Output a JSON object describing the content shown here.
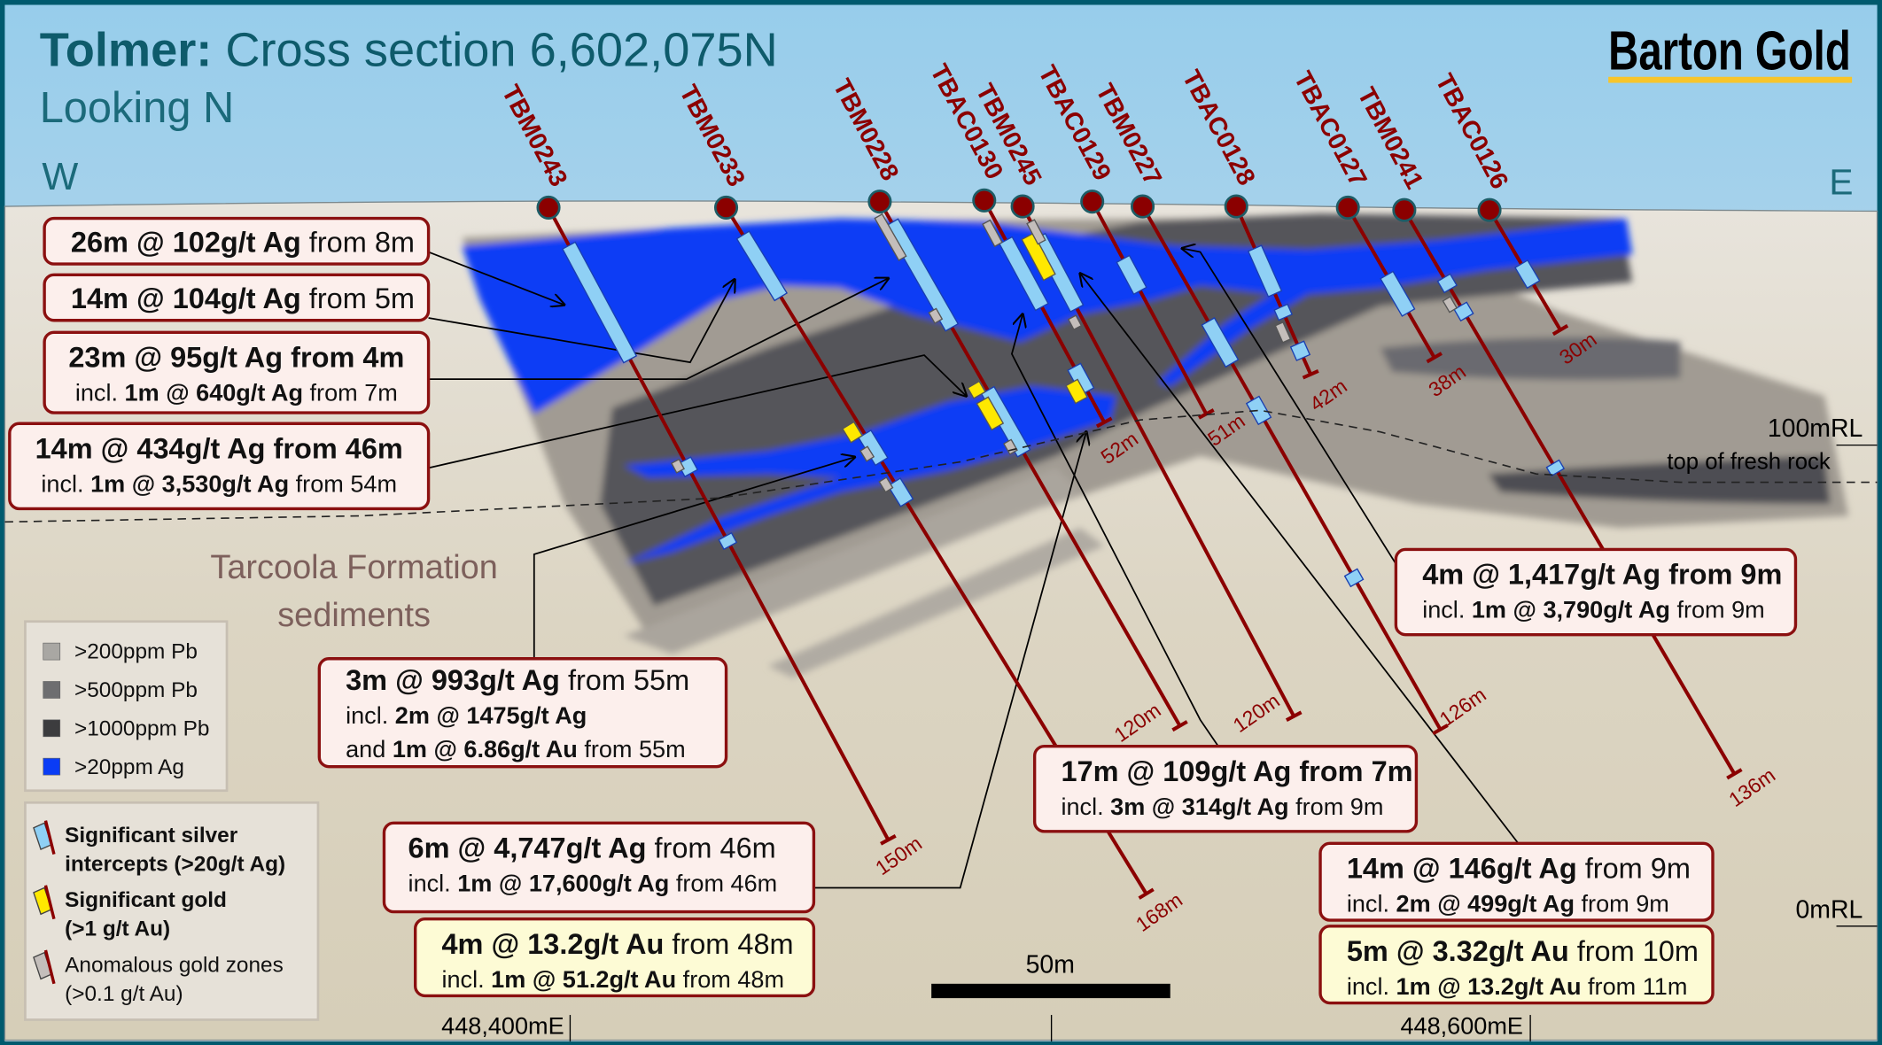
{
  "title": {
    "bold": "Tolmer:",
    "rest": " Cross section 6,602,075N",
    "subtitle": "Looking N"
  },
  "logo": "Barton Gold",
  "compass": {
    "west": "W",
    "east": "E"
  },
  "holes": [
    {
      "name": "TBM0243",
      "depth": "150m"
    },
    {
      "name": "TBM0233",
      "depth": "168m"
    },
    {
      "name": "TBM0228",
      "depth": "120m"
    },
    {
      "name": "TBAC0130",
      "depth": "52m"
    },
    {
      "name": "TBM0245",
      "depth": "120m"
    },
    {
      "name": "TBAC0129",
      "depth": "51m"
    },
    {
      "name": "TBM0227",
      "depth": "126m"
    },
    {
      "name": "TBAC0128",
      "depth": "42m"
    },
    {
      "name": "TBAC0127",
      "depth": "38m"
    },
    {
      "name": "TBM0241",
      "depth": "136m"
    },
    {
      "name": "TBAC0126",
      "depth": "30m"
    }
  ],
  "rl_labels": {
    "r100": "100mRL",
    "fresh_rock": "top of fresh rock",
    "r0": "0mRL"
  },
  "formation": [
    "Tarcoola Formation",
    "sediments"
  ],
  "legend_geochem": [
    {
      "label": ">200ppm Pb",
      "color": "#a9a7a3"
    },
    {
      "label": ">500ppm Pb",
      "color": "#6e6e70"
    },
    {
      "label": ">1000ppm Pb",
      "color": "#3c3c3e"
    },
    {
      "label": ">20ppm Ag",
      "color": "#0a3cf5"
    }
  ],
  "legend_intercepts": [
    {
      "lines": [
        "Significant silver",
        "intercepts (>20g/t Ag)"
      ],
      "color": "#8fd0f5",
      "bold": true
    },
    {
      "lines": [
        "Significant gold",
        "(>1 g/t Au)"
      ],
      "color": "#ffe800",
      "bold": true
    },
    {
      "lines": [
        "Anomalous gold zones",
        "(>0.1 g/t Au)"
      ],
      "color": "#c4bebb",
      "bold": false
    }
  ],
  "scale_bar": "50m",
  "eastings": [
    "448,400mE",
    "448,600mE"
  ],
  "callouts": [
    {
      "type": "ag",
      "lines": [
        [
          {
            "t": "26m @ 102g/t Ag",
            "b": true
          },
          {
            "t": " from 8m"
          }
        ]
      ]
    },
    {
      "type": "ag",
      "lines": [
        [
          {
            "t": "14m @ 104g/t Ag",
            "b": true
          },
          {
            "t": " from 5m"
          }
        ]
      ]
    },
    {
      "type": "ag",
      "lines": [
        [
          {
            "t": "23m @ 95g/t Ag from 4m",
            "b": true
          }
        ],
        [
          {
            "t": "incl. "
          },
          {
            "t": "1m @ 640g/t Ag",
            "b": true
          },
          {
            "t": " from 7m"
          }
        ]
      ]
    },
    {
      "type": "ag",
      "lines": [
        [
          {
            "t": "14m @ 434g/t Ag from 46m",
            "b": true
          }
        ],
        [
          {
            "t": "incl. "
          },
          {
            "t": "1m @ 3,530g/t Ag",
            "b": true
          },
          {
            "t": " from 54m"
          }
        ]
      ]
    },
    {
      "type": "ag",
      "lines": [
        [
          {
            "t": "3m @ 993g/t Ag",
            "b": true
          },
          {
            "t": " from 55m"
          }
        ],
        [
          {
            "t": "incl. "
          },
          {
            "t": "2m @ 1475g/t Ag",
            "b": true
          }
        ],
        [
          {
            "t": "and "
          },
          {
            "t": "1m @ 6.86g/t Au",
            "b": true
          },
          {
            "t": " from 55m"
          }
        ]
      ]
    },
    {
      "type": "ag",
      "lines": [
        [
          {
            "t": "6m @ 4,747g/t Ag",
            "b": true
          },
          {
            "t": " from 46m"
          }
        ],
        [
          {
            "t": "incl. "
          },
          {
            "t": "1m @ 17,600g/t Ag",
            "b": true
          },
          {
            "t": " from 46m"
          }
        ]
      ]
    },
    {
      "type": "au",
      "lines": [
        [
          {
            "t": "4m @ 13.2g/t Au",
            "b": true
          },
          {
            "t": " from 48m"
          }
        ],
        [
          {
            "t": "incl. "
          },
          {
            "t": "1m @ 51.2g/t Au",
            "b": true
          },
          {
            "t": " from 48m"
          }
        ]
      ]
    },
    {
      "type": "ag",
      "lines": [
        [
          {
            "t": "17m @ 109g/t Ag from 7m",
            "b": true
          }
        ],
        [
          {
            "t": "incl. "
          },
          {
            "t": "3m @ 314g/t Ag",
            "b": true
          },
          {
            "t": " from 9m"
          }
        ]
      ]
    },
    {
      "type": "ag",
      "lines": [
        [
          {
            "t": "4m @ 1,417g/t Ag from 9m",
            "b": true
          }
        ],
        [
          {
            "t": "incl. "
          },
          {
            "t": "1m @ 3,790g/t Ag",
            "b": true
          },
          {
            "t": " from 9m"
          }
        ]
      ]
    },
    {
      "type": "ag",
      "lines": [
        [
          {
            "t": "14m @ 146g/t Ag",
            "b": true
          },
          {
            "t": " from 9m"
          }
        ],
        [
          {
            "t": "incl. "
          },
          {
            "t": "2m @ 499g/t Ag",
            "b": true
          },
          {
            "t": " from 9m"
          }
        ]
      ]
    },
    {
      "type": "au",
      "lines": [
        [
          {
            "t": "5m @ 3.32g/t Au",
            "b": true
          },
          {
            "t": " from 10m"
          }
        ],
        [
          {
            "t": "incl. "
          },
          {
            "t": "1m @ 13.2g/t Au",
            "b": true
          },
          {
            "t": " from 11m"
          }
        ]
      ]
    }
  ],
  "colors": {
    "frame": "#005a6e",
    "title": "#0e5b6b",
    "hole": "#8b0000",
    "logo_underline": "#f7c52b",
    "callout_ag_fill": "#fcefec",
    "callout_au_fill": "#fdfbd5",
    "callout_border": "#8b1010",
    "formation_text": "#7d605c"
  }
}
